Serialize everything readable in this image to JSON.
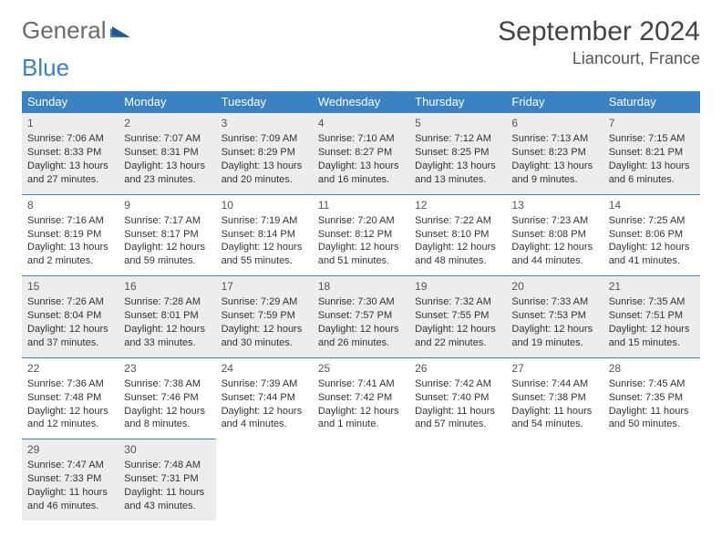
{
  "logo": {
    "word1": "General",
    "word2": "Blue"
  },
  "title": "September 2024",
  "location": "Liancourt, France",
  "header_bg": "#3b82c4",
  "shade_bg": "#ededed",
  "weekdays": [
    "Sunday",
    "Monday",
    "Tuesday",
    "Wednesday",
    "Thursday",
    "Friday",
    "Saturday"
  ],
  "days": [
    {
      "n": 1,
      "sr": "7:06 AM",
      "ss": "8:33 PM",
      "dl": "13 hours and 27 minutes."
    },
    {
      "n": 2,
      "sr": "7:07 AM",
      "ss": "8:31 PM",
      "dl": "13 hours and 23 minutes."
    },
    {
      "n": 3,
      "sr": "7:09 AM",
      "ss": "8:29 PM",
      "dl": "13 hours and 20 minutes."
    },
    {
      "n": 4,
      "sr": "7:10 AM",
      "ss": "8:27 PM",
      "dl": "13 hours and 16 minutes."
    },
    {
      "n": 5,
      "sr": "7:12 AM",
      "ss": "8:25 PM",
      "dl": "13 hours and 13 minutes."
    },
    {
      "n": 6,
      "sr": "7:13 AM",
      "ss": "8:23 PM",
      "dl": "13 hours and 9 minutes."
    },
    {
      "n": 7,
      "sr": "7:15 AM",
      "ss": "8:21 PM",
      "dl": "13 hours and 6 minutes."
    },
    {
      "n": 8,
      "sr": "7:16 AM",
      "ss": "8:19 PM",
      "dl": "13 hours and 2 minutes."
    },
    {
      "n": 9,
      "sr": "7:17 AM",
      "ss": "8:17 PM",
      "dl": "12 hours and 59 minutes."
    },
    {
      "n": 10,
      "sr": "7:19 AM",
      "ss": "8:14 PM",
      "dl": "12 hours and 55 minutes."
    },
    {
      "n": 11,
      "sr": "7:20 AM",
      "ss": "8:12 PM",
      "dl": "12 hours and 51 minutes."
    },
    {
      "n": 12,
      "sr": "7:22 AM",
      "ss": "8:10 PM",
      "dl": "12 hours and 48 minutes."
    },
    {
      "n": 13,
      "sr": "7:23 AM",
      "ss": "8:08 PM",
      "dl": "12 hours and 44 minutes."
    },
    {
      "n": 14,
      "sr": "7:25 AM",
      "ss": "8:06 PM",
      "dl": "12 hours and 41 minutes."
    },
    {
      "n": 15,
      "sr": "7:26 AM",
      "ss": "8:04 PM",
      "dl": "12 hours and 37 minutes."
    },
    {
      "n": 16,
      "sr": "7:28 AM",
      "ss": "8:01 PM",
      "dl": "12 hours and 33 minutes."
    },
    {
      "n": 17,
      "sr": "7:29 AM",
      "ss": "7:59 PM",
      "dl": "12 hours and 30 minutes."
    },
    {
      "n": 18,
      "sr": "7:30 AM",
      "ss": "7:57 PM",
      "dl": "12 hours and 26 minutes."
    },
    {
      "n": 19,
      "sr": "7:32 AM",
      "ss": "7:55 PM",
      "dl": "12 hours and 22 minutes."
    },
    {
      "n": 20,
      "sr": "7:33 AM",
      "ss": "7:53 PM",
      "dl": "12 hours and 19 minutes."
    },
    {
      "n": 21,
      "sr": "7:35 AM",
      "ss": "7:51 PM",
      "dl": "12 hours and 15 minutes."
    },
    {
      "n": 22,
      "sr": "7:36 AM",
      "ss": "7:48 PM",
      "dl": "12 hours and 12 minutes."
    },
    {
      "n": 23,
      "sr": "7:38 AM",
      "ss": "7:46 PM",
      "dl": "12 hours and 8 minutes."
    },
    {
      "n": 24,
      "sr": "7:39 AM",
      "ss": "7:44 PM",
      "dl": "12 hours and 4 minutes."
    },
    {
      "n": 25,
      "sr": "7:41 AM",
      "ss": "7:42 PM",
      "dl": "12 hours and 1 minute."
    },
    {
      "n": 26,
      "sr": "7:42 AM",
      "ss": "7:40 PM",
      "dl": "11 hours and 57 minutes."
    },
    {
      "n": 27,
      "sr": "7:44 AM",
      "ss": "7:38 PM",
      "dl": "11 hours and 54 minutes."
    },
    {
      "n": 28,
      "sr": "7:45 AM",
      "ss": "7:35 PM",
      "dl": "11 hours and 50 minutes."
    },
    {
      "n": 29,
      "sr": "7:47 AM",
      "ss": "7:33 PM",
      "dl": "11 hours and 46 minutes."
    },
    {
      "n": 30,
      "sr": "7:48 AM",
      "ss": "7:31 PM",
      "dl": "11 hours and 43 minutes."
    }
  ],
  "labels": {
    "sunrise": "Sunrise:",
    "sunset": "Sunset:",
    "daylight": "Daylight:"
  },
  "shaded_days": [
    1,
    2,
    3,
    4,
    5,
    6,
    7,
    15,
    16,
    17,
    18,
    19,
    20,
    21,
    29,
    30
  ],
  "start_weekday": 0
}
